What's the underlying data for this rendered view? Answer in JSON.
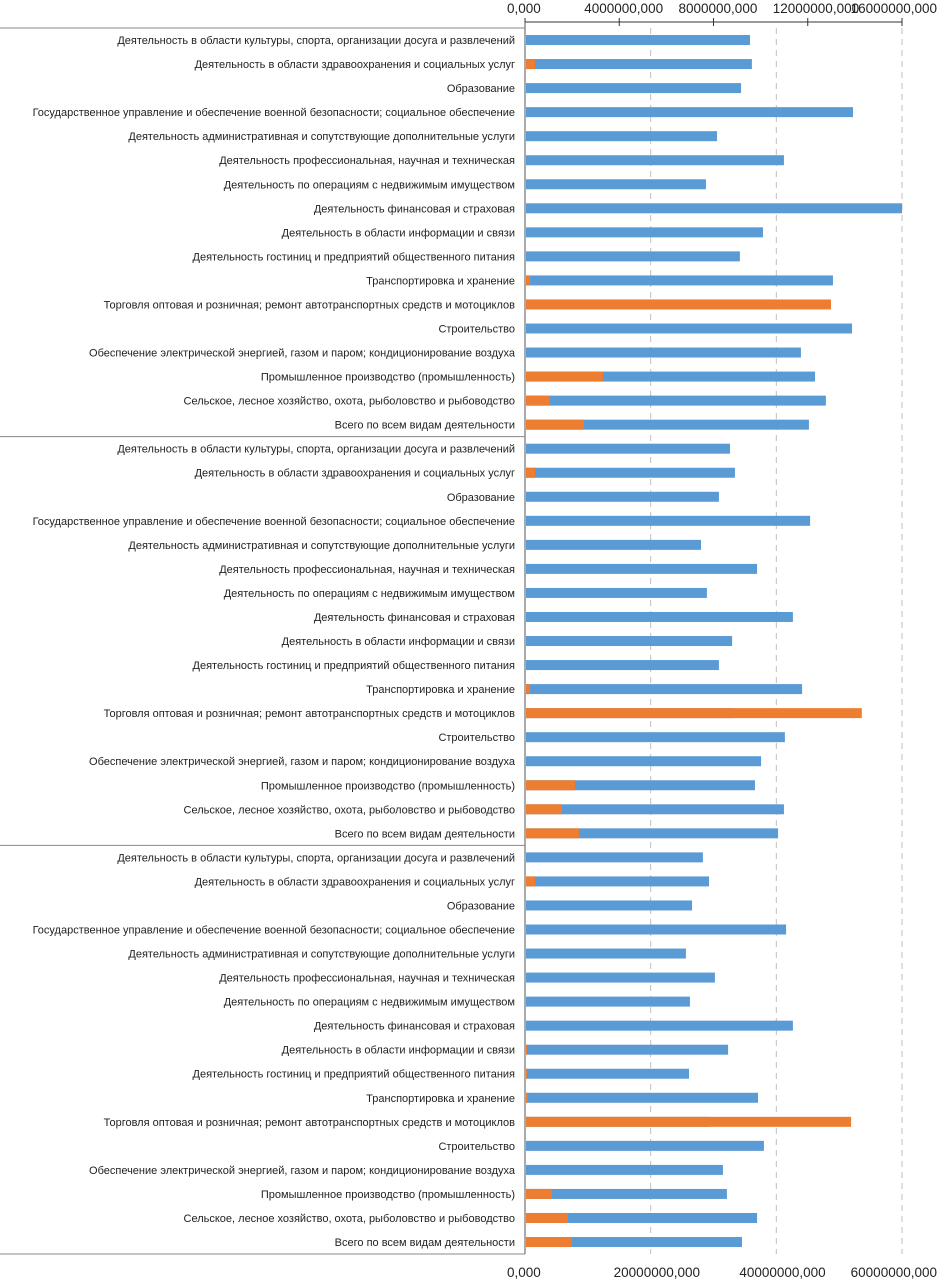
{
  "chart_data": {
    "type": "bar",
    "orientation": "horizontal",
    "title": "",
    "categories": [
      "Деятельность в области культуры, спорта, организации досуга и развлечений",
      "Деятельность в области здравоохранения и социальных услуг",
      "Образование",
      "Государственное управление и обеспечение военной безопасности; социальное обеспечение",
      "Деятельность административная и сопутствующие дополнительные услуги",
      "Деятельность профессиональная, научная и техническая",
      "Деятельность по операциям с недвижимым имуществом",
      "Деятельность финансовая и страховая",
      "Деятельность в области информации и связи",
      "Деятельность гостиниц и предприятий общественного питания",
      "Транспортировка и хранение",
      "Торговля оптовая и розничная; ремонт автотранспортных средств и мотоциклов",
      "Строительство",
      "Обеспечение электрической энергией, газом и паром; кондиционирование воздуха",
      "Промышленное производство (промышленность)",
      "Сельское, лесное хозяйство, охота, рыболовство и рыбоводство",
      "Всего по всем видам деятельности"
    ],
    "groups": [
      {
        "blue": [
          9550000,
          9630000,
          9170000,
          13920000,
          8150000,
          10990000,
          7680000,
          16000000,
          10100000,
          9120000,
          13070000,
          10740000,
          13880000,
          11710000,
          12310000,
          12770000,
          12050000
        ],
        "orange": [
          0,
          1590000,
          0,
          0,
          0,
          0,
          0,
          0,
          0,
          0,
          800000,
          48700000,
          0,
          0,
          12400000,
          3980000,
          9390000
        ]
      },
      {
        "blue": [
          8700000,
          8910000,
          8230000,
          12100000,
          7470000,
          9850000,
          7720000,
          11370000,
          8790000,
          8230000,
          11760000,
          8830000,
          11030000,
          10020000,
          9760000,
          10990000,
          10740000
        ],
        "orange": [
          0,
          1590000,
          0,
          0,
          0,
          0,
          0,
          0,
          0,
          0,
          800000,
          53600000,
          0,
          0,
          7960000,
          5890000,
          8590000
        ]
      },
      {
        "blue": [
          7550000,
          7810000,
          7090000,
          11080000,
          6830000,
          8060000,
          7000000,
          11370000,
          8620000,
          6960000,
          9890000,
          7810000,
          10140000,
          8400000,
          8570000,
          9850000,
          9210000
        ],
        "orange": [
          0,
          1590000,
          0,
          0,
          0,
          0,
          0,
          0,
          320000,
          320000,
          480000,
          51900000,
          0,
          0,
          4300000,
          6840000,
          7480000
        ]
      }
    ],
    "series_colors": {
      "blue": "#5b9bd5",
      "orange": "#ed7d31"
    },
    "top_axis": {
      "series": "blue",
      "range": [
        0,
        16000000
      ],
      "ticks": [
        "0,000",
        "4000000,000",
        "8000000,000",
        "12000000,000",
        "16000000,000"
      ]
    },
    "bottom_axis": {
      "series": "orange",
      "range": [
        0,
        60000000
      ],
      "ticks": [
        "0,000",
        "20000000,000",
        "40000000,000",
        "60000000,000"
      ],
      "grid": true
    },
    "xlabel": "",
    "ylabel": ""
  }
}
